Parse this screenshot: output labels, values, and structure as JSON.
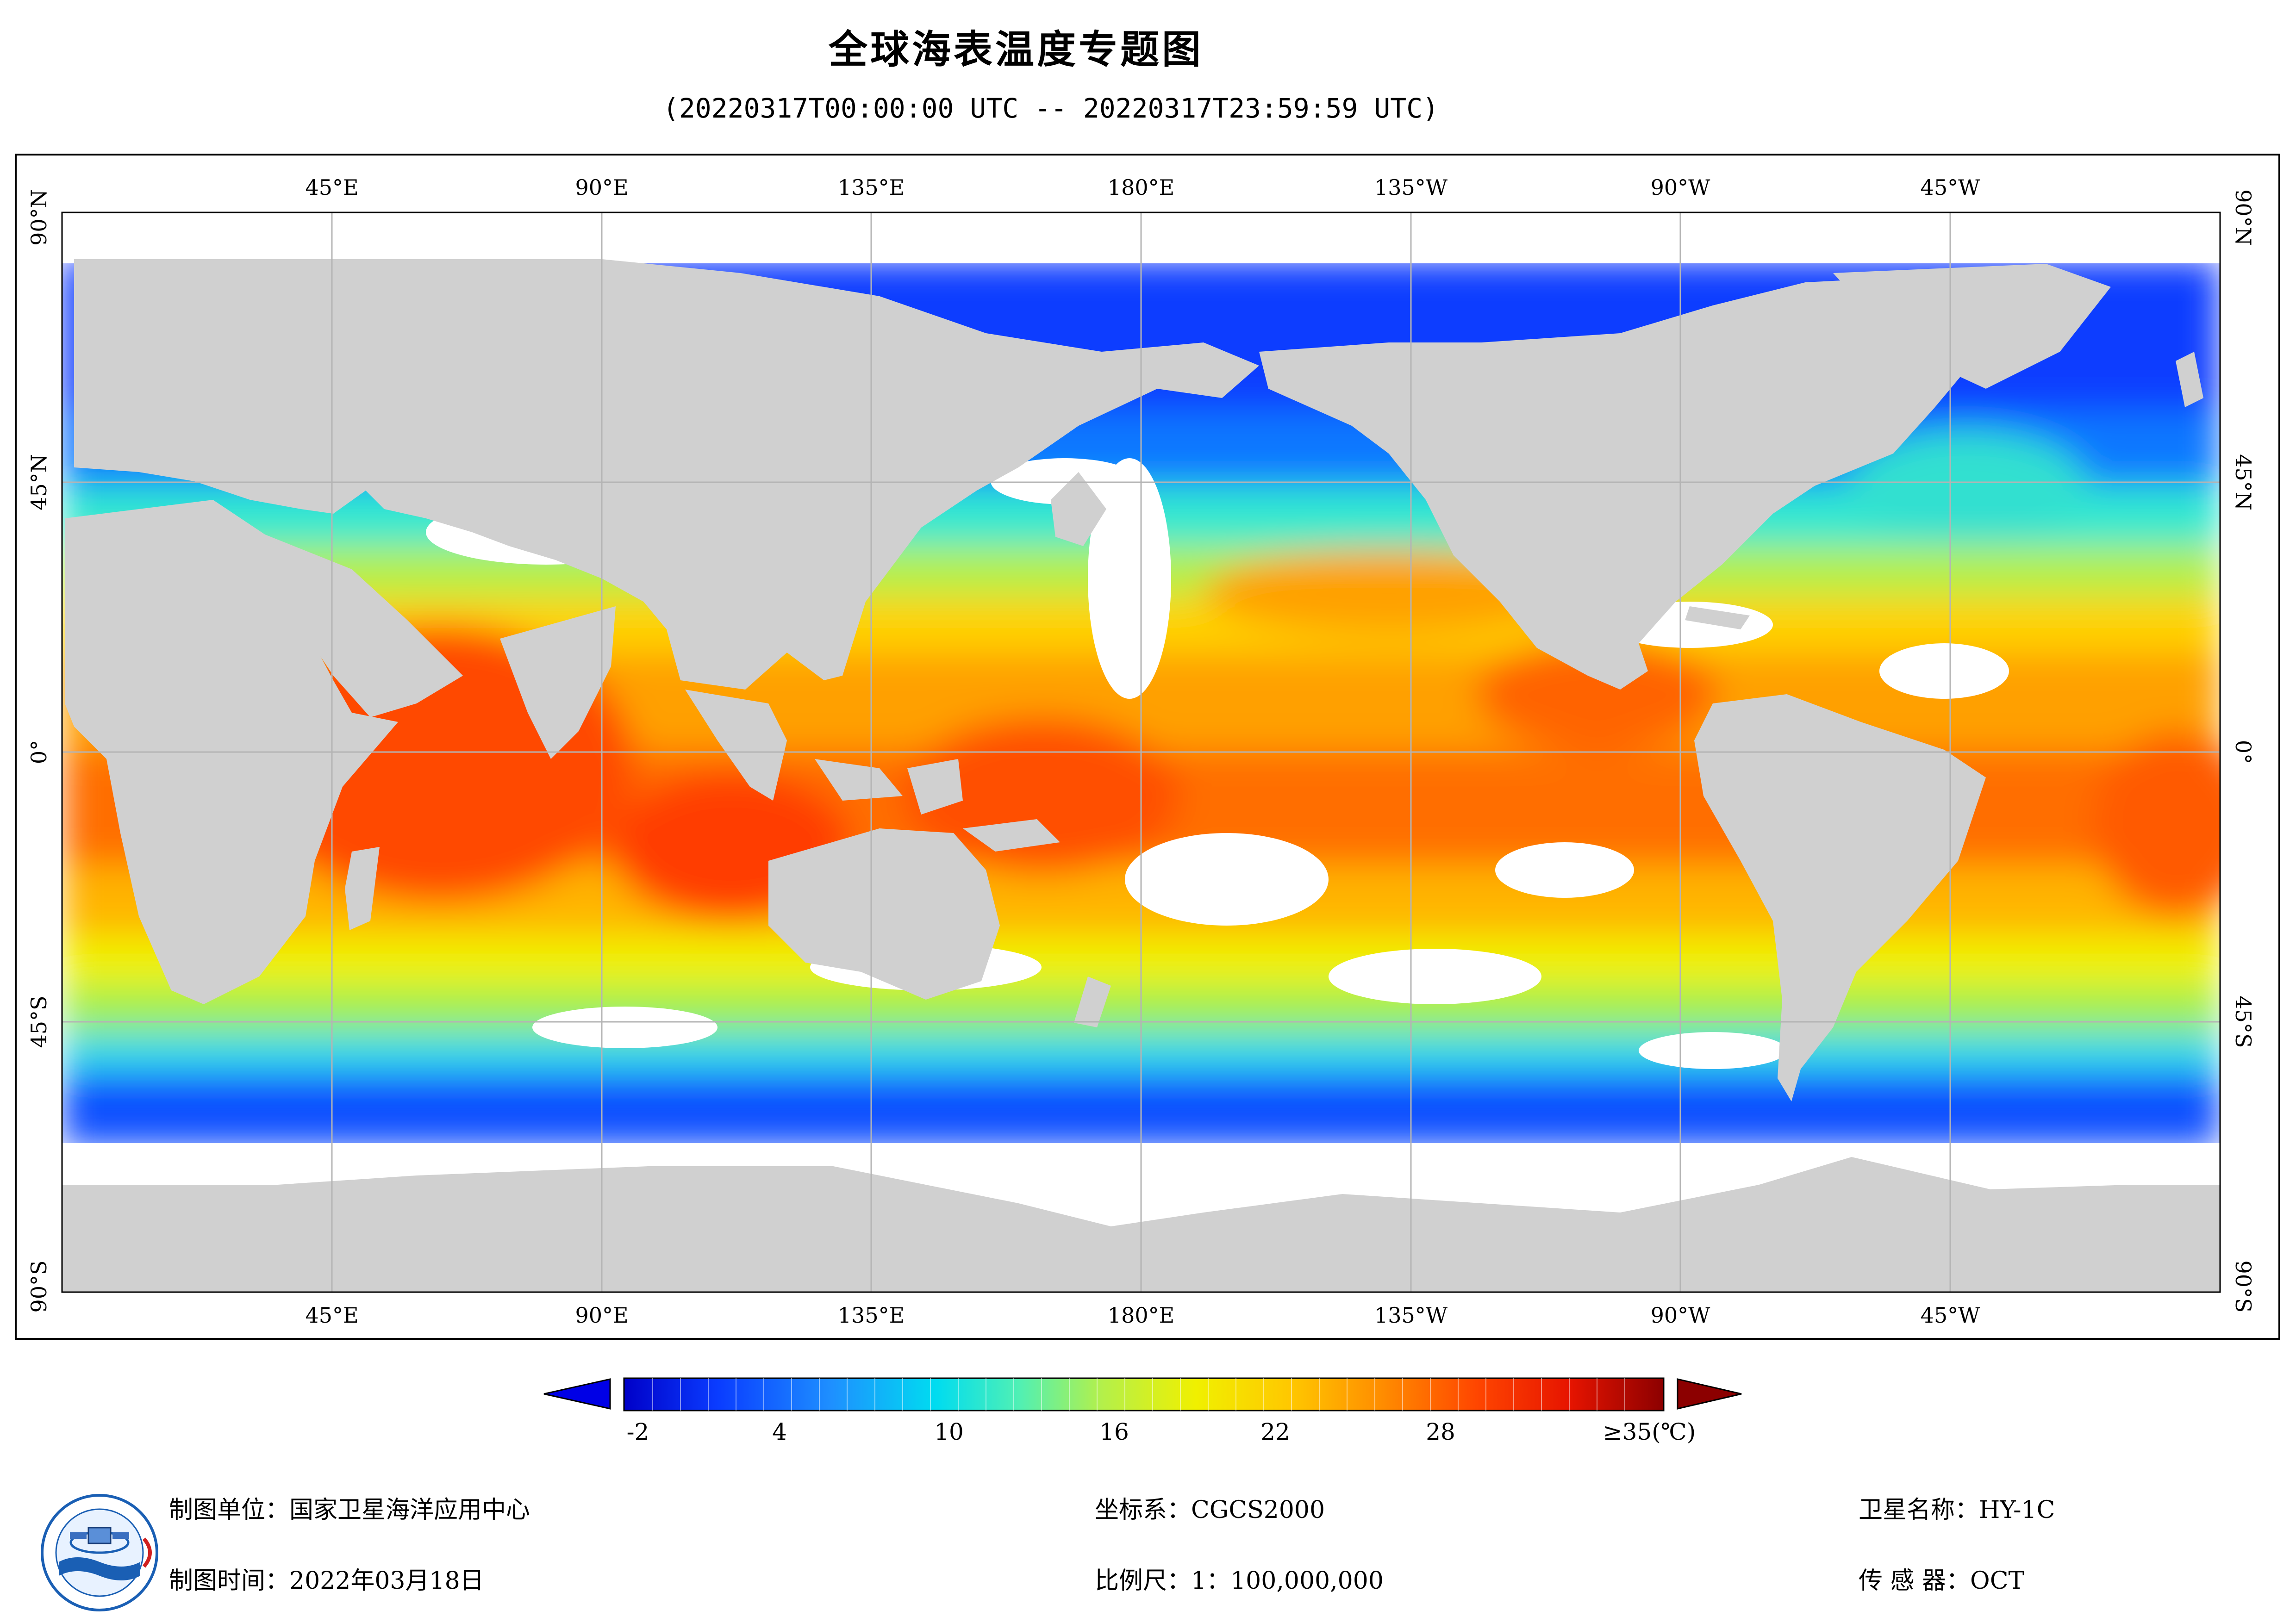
{
  "title": "全球海表温度专题图",
  "subtitle": "(20220317T00:00:00 UTC -- 20220317T23:59:59 UTC)",
  "map": {
    "lon_labels_top": [
      "45°E",
      "90°E",
      "135°E",
      "180°E",
      "135°W",
      "90°W",
      "45°W"
    ],
    "lon_labels_bottom": [
      "45°E",
      "90°E",
      "135°E",
      "180°E",
      "135°W",
      "90°W",
      "45°W"
    ],
    "lat_labels_left": [
      "90°N",
      "45°N",
      "0°",
      "45°S",
      "90°S"
    ],
    "lat_labels_right": [
      "90°N",
      "45°N",
      "0°",
      "45°S",
      "90°S"
    ],
    "colors": {
      "land": "#d0d0d0",
      "no_data": "#ffffff",
      "grid": "#b4b4b4"
    }
  },
  "legend": {
    "ticks": [
      "-2",
      "4",
      "10",
      "16",
      "22",
      "28",
      "≥35(℃)"
    ],
    "min": -2,
    "max": 35,
    "colors": [
      "#0000c8",
      "#0a3cff",
      "#1e90ff",
      "#00dcf0",
      "#50f0b4",
      "#b4f04a",
      "#f0f000",
      "#ffc800",
      "#ff8c00",
      "#ff4600",
      "#e61400",
      "#8c0000"
    ]
  },
  "footer": {
    "unit": "制图单位：国家卫星海洋应用中心",
    "time": "制图时间：2022年03月18日",
    "crs": "坐标系：CGCS2000",
    "scale": "比例尺：1：100,000,000",
    "satellite": "卫星名称：HY-1C",
    "sensor": "传 感 器：OCT"
  },
  "logo": {
    "icon": "nsoas-logo-icon",
    "text": "NATIONAL SATELLITE OCEAN APPLICATION SERVICE"
  }
}
